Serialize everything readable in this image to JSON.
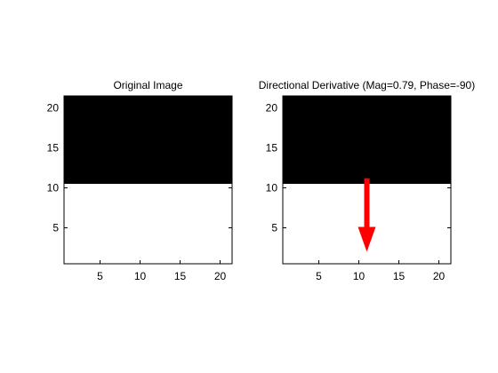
{
  "chart_data": [
    {
      "type": "heatmap",
      "title": "Original Image",
      "xlabel": "",
      "ylabel": "",
      "xlim": [
        0.5,
        21.5
      ],
      "ylim": [
        0.5,
        21.5
      ],
      "xticks": [
        5,
        10,
        15,
        20
      ],
      "yticks": [
        5,
        10,
        15,
        20
      ],
      "regions": [
        {
          "y_from": 10.5,
          "y_to": 21.5,
          "color": "#000000"
        },
        {
          "y_from": 0.5,
          "y_to": 10.5,
          "color": "#ffffff"
        }
      ]
    },
    {
      "type": "heatmap",
      "title": "Directional Derivative (Mag=0.79, Phase=-90)",
      "xlabel": "",
      "ylabel": "",
      "xlim": [
        0.5,
        21.5
      ],
      "ylim": [
        0.5,
        21.5
      ],
      "xticks": [
        5,
        10,
        15,
        20
      ],
      "yticks": [
        5,
        10,
        15,
        20
      ],
      "regions": [
        {
          "y_from": 10.5,
          "y_to": 21.5,
          "color": "#000000"
        },
        {
          "y_from": 0.5,
          "y_to": 10.5,
          "color": "#ffffff"
        }
      ],
      "arrow": {
        "x": 11,
        "y_start": 11.2,
        "y_end": 2.0,
        "color": "#ff0000"
      }
    }
  ]
}
